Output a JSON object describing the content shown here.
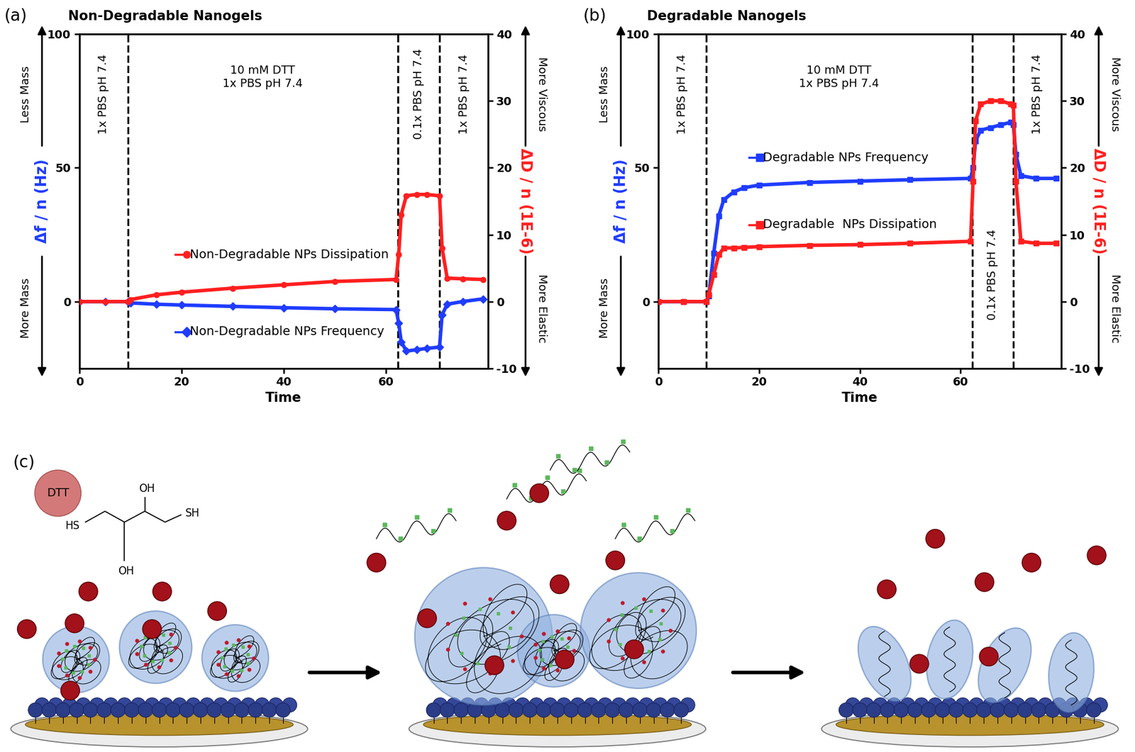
{
  "chart_data": [
    {
      "panel": "(a)",
      "title": "Non-Degradable Nanogels",
      "type": "line",
      "x_label": "Time",
      "y_label": "Δf / n (Hz)",
      "y2_label": "ΔD / n (1E-6)",
      "x": [
        0,
        5,
        9.5,
        10,
        15,
        20,
        30,
        40,
        50,
        62,
        62.5,
        63,
        64,
        66,
        68,
        70.5,
        71,
        72,
        75,
        79
      ],
      "series": [
        {
          "name": "Non-Degradable NPs Dissipation",
          "color": "#ff1f1f",
          "marker": "circle",
          "line_style": "solid",
          "axis": "y2",
          "values": [
            0,
            0,
            0,
            0.3,
            1,
            1.4,
            2,
            2.5,
            3,
            3.3,
            7,
            13,
            15.8,
            16,
            16,
            15.8,
            8,
            3.5,
            3.4,
            3.3
          ]
        },
        {
          "name": "Non-Degradable NPs Frequency",
          "color": "#1f3cff",
          "marker": "diamond",
          "line_style": "solid",
          "values": [
            0,
            0,
            0,
            -0.5,
            -1,
            -1.3,
            -1.8,
            -2.3,
            -2.7,
            -3,
            -8,
            -15,
            -18.5,
            -18,
            -17.5,
            -17,
            -5,
            -1,
            0,
            1
          ]
        }
      ],
      "xlim": [
        0,
        80
      ],
      "xticks": [
        0,
        20,
        40,
        60
      ],
      "ylim": [
        -25,
        100
      ],
      "yticks": [
        0,
        50,
        100
      ],
      "y2lim": [
        -10,
        40
      ],
      "y2ticks": [
        -10,
        0,
        10,
        20,
        30,
        40
      ],
      "phase_boundaries": [
        9.5,
        62.3,
        70.5
      ],
      "phases": [
        "1x PBS pH 7.4",
        "10 mM DTT\n1x PBS pH 7.4",
        "0.1x PBS pH 7.4",
        "1x PBS pH 7.4"
      ],
      "y_arrows": [
        "Less Mass",
        "More Mass"
      ],
      "y2_arrows": [
        "More Viscous",
        "More Elastic"
      ]
    },
    {
      "panel": "(b)",
      "title": "Degradable Nanogels",
      "type": "line",
      "x_label": "Time",
      "y_label": "Δf / n (Hz)",
      "y2_label": "ΔD / n (1E-6)",
      "x": [
        0,
        5,
        9.5,
        10,
        11,
        12,
        13,
        15,
        17,
        20,
        30,
        40,
        50,
        62,
        62.5,
        63,
        64,
        66,
        68,
        70,
        70.5,
        71,
        72,
        75,
        79
      ],
      "series": [
        {
          "name": "Degradable  NPs Dissipation",
          "color": "#ff1f1f",
          "marker": "square",
          "line_style": "solid",
          "axis": "y2",
          "values": [
            0,
            0,
            0,
            1,
            4,
            7,
            8,
            8,
            8.1,
            8.2,
            8.4,
            8.5,
            8.7,
            9,
            18,
            27,
            29.5,
            30,
            30,
            29.5,
            29.3,
            18,
            9,
            8.7,
            8.7
          ]
        },
        {
          "name": "Degradable NPs Frequency",
          "color": "#1f3cff",
          "marker": "square",
          "line_style": "solid",
          "values": [
            0,
            0,
            0,
            2,
            18,
            32,
            38,
            41,
            42.5,
            43.5,
            44.5,
            45,
            45.5,
            46,
            50,
            60,
            64,
            65,
            66,
            67,
            66,
            55,
            47,
            46,
            46
          ]
        }
      ],
      "xlim": [
        0,
        80
      ],
      "xticks": [
        0,
        20,
        40,
        60
      ],
      "ylim": [
        -25,
        100
      ],
      "yticks": [
        0,
        50,
        100
      ],
      "y2lim": [
        -10,
        40
      ],
      "y2ticks": [
        -10,
        0,
        10,
        20,
        30,
        40
      ],
      "phase_boundaries": [
        9.5,
        62.3,
        70.5
      ],
      "phases": [
        "1x PBS pH 7.4",
        "10 mM DTT\n1x PBS pH 7.4",
        "0.1x PBS pH 7.4",
        "1x PBS pH 7.4"
      ],
      "y_arrows": [
        "Less Mass",
        "More Mass"
      ],
      "y2_arrows": [
        "More Viscous",
        "More Elastic"
      ]
    }
  ],
  "diagram": {
    "label": "(c)",
    "reagent": "DTT",
    "structure_labels": {
      "thiol_left": "HS",
      "thiol_right": "SH",
      "hydroxyl_top": "OH",
      "hydroxyl_bottom": "OH"
    }
  }
}
